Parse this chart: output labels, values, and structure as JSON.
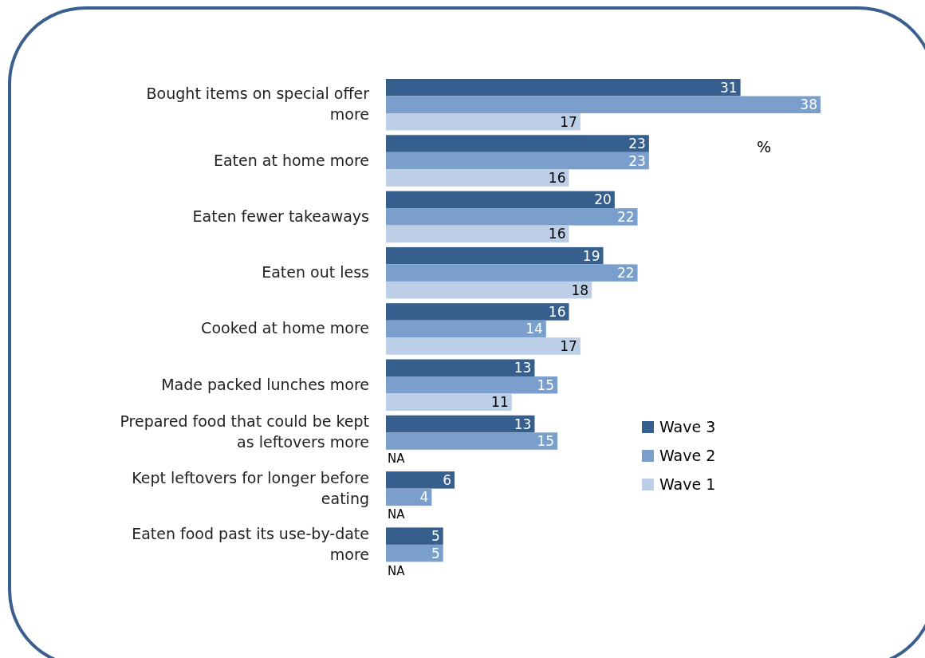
{
  "chart_data": {
    "type": "bar",
    "orientation": "horizontal",
    "categories": [
      "Bought items on special offer more",
      "Eaten at home more",
      "Eaten fewer takeaways",
      "Eaten out less",
      "Cooked at home more",
      "Made packed lunches more",
      "Prepared food that could be kept as leftovers more",
      "Kept leftovers for longer before eating",
      "Eaten food past its use-by-date more"
    ],
    "series": [
      {
        "name": "Wave 3",
        "color": "#375f8e",
        "values": [
          31,
          23,
          20,
          19,
          16,
          13,
          13,
          6,
          5
        ],
        "value_labels": [
          "31",
          "23",
          "20",
          "19",
          "16",
          "13",
          "13",
          "6",
          "5"
        ]
      },
      {
        "name": "Wave 2",
        "color": "#7a9fcc",
        "values": [
          38,
          23,
          22,
          22,
          14,
          15,
          15,
          4,
          5
        ],
        "value_labels": [
          "38",
          "23",
          "22",
          "22",
          "14",
          "15",
          "15",
          "4",
          "5"
        ]
      },
      {
        "name": "Wave 1",
        "color": "#bccfe6",
        "values": [
          17,
          16,
          16,
          18,
          17,
          11,
          null,
          null,
          null
        ],
        "value_labels": [
          "17",
          "16",
          "16",
          "18",
          "17",
          "11",
          "NA",
          "NA",
          "NA"
        ]
      }
    ],
    "annotations": [
      "%"
    ],
    "legend": "right",
    "grid": false
  }
}
